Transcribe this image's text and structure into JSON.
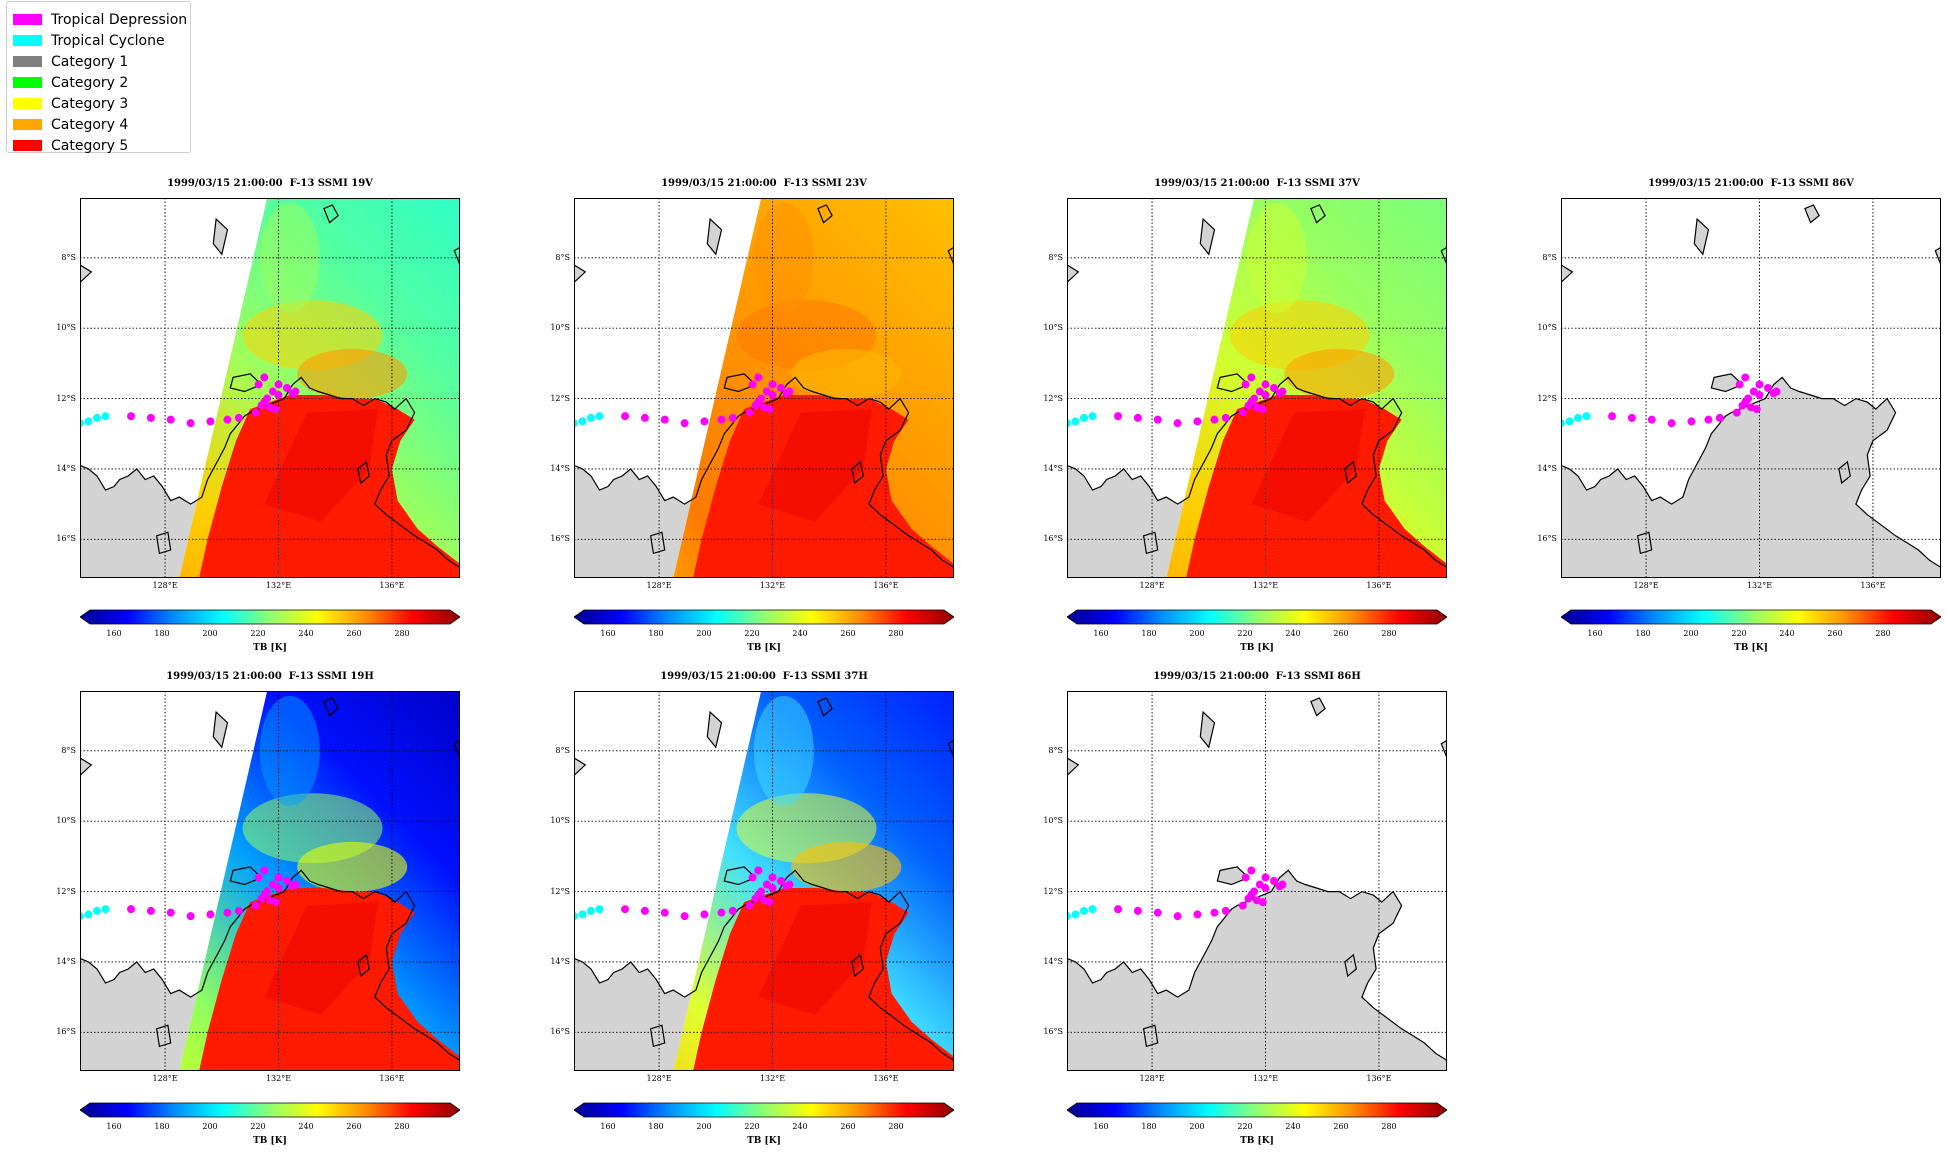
{
  "legend": {
    "items": [
      {
        "label": "Tropical Depression",
        "color": "#ff00ff"
      },
      {
        "label": "Tropical Cyclone",
        "color": "#00ffff"
      },
      {
        "label": "Category 1",
        "color": "#808080"
      },
      {
        "label": "Category 2",
        "color": "#00ff00"
      },
      {
        "label": "Category 3",
        "color": "#ffff00"
      },
      {
        "label": "Category 4",
        "color": "#ffa500"
      },
      {
        "label": "Category 5",
        "color": "#ff0000"
      }
    ]
  },
  "lat_ticks": [
    "8°S",
    "10°S",
    "12°S",
    "14°S",
    "16°S"
  ],
  "lon_ticks": [
    "128°E",
    "132°E",
    "136°E"
  ],
  "colorbar": {
    "ticks": [
      "160",
      "180",
      "200",
      "220",
      "240",
      "260",
      "280"
    ],
    "label": "TB [K]"
  },
  "chart_data": [
    {
      "type": "heatmap",
      "title": "1999/03/15 21:00:00  F-13 SSMI 19V",
      "channel": "19V",
      "ocean_palette": "warm-green",
      "has_swath": true
    },
    {
      "type": "heatmap",
      "title": "1999/03/15 21:00:00  F-13 SSMI 23V",
      "channel": "23V",
      "ocean_palette": "orange",
      "has_swath": true
    },
    {
      "type": "heatmap",
      "title": "1999/03/15 21:00:00  F-13 SSMI 37V",
      "channel": "37V",
      "ocean_palette": "green",
      "has_swath": true
    },
    {
      "type": "heatmap",
      "title": "1999/03/15 21:00:00  F-13 SSMI 86V",
      "channel": "86V",
      "ocean_palette": "none",
      "has_swath": false
    },
    {
      "type": "heatmap",
      "title": "1999/03/15 21:00:00  F-13 SSMI 19H",
      "channel": "19H",
      "ocean_palette": "blue",
      "has_swath": true
    },
    {
      "type": "heatmap",
      "title": "1999/03/15 21:00:00  F-13 SSMI 37H",
      "channel": "37H",
      "ocean_palette": "blue-yellow",
      "has_swath": true
    },
    {
      "type": "heatmap",
      "title": "1999/03/15 21:00:00  F-13 SSMI 86H",
      "channel": "86H",
      "ocean_palette": "none",
      "has_swath": false
    }
  ],
  "track": {
    "cyclone_points": [
      [
        125.0,
        -12.7
      ],
      [
        125.3,
        -12.65
      ],
      [
        125.6,
        -12.55
      ],
      [
        125.9,
        -12.5
      ]
    ],
    "depression_points": [
      [
        126.8,
        -12.5
      ],
      [
        127.5,
        -12.55
      ],
      [
        128.2,
        -12.6
      ],
      [
        128.9,
        -12.7
      ],
      [
        129.6,
        -12.65
      ],
      [
        130.2,
        -12.6
      ],
      [
        130.6,
        -12.55
      ],
      [
        131.2,
        -12.4
      ],
      [
        131.4,
        -12.2
      ],
      [
        131.6,
        -12.0
      ],
      [
        131.8,
        -11.8
      ],
      [
        132.0,
        -11.6
      ],
      [
        132.3,
        -11.7
      ],
      [
        132.5,
        -11.85
      ],
      [
        131.9,
        -12.3
      ],
      [
        131.5,
        -12.1
      ],
      [
        131.3,
        -11.6
      ],
      [
        131.5,
        -11.4
      ],
      [
        132.0,
        -11.9
      ],
      [
        132.6,
        -11.8
      ],
      [
        131.7,
        -12.25
      ]
    ]
  }
}
